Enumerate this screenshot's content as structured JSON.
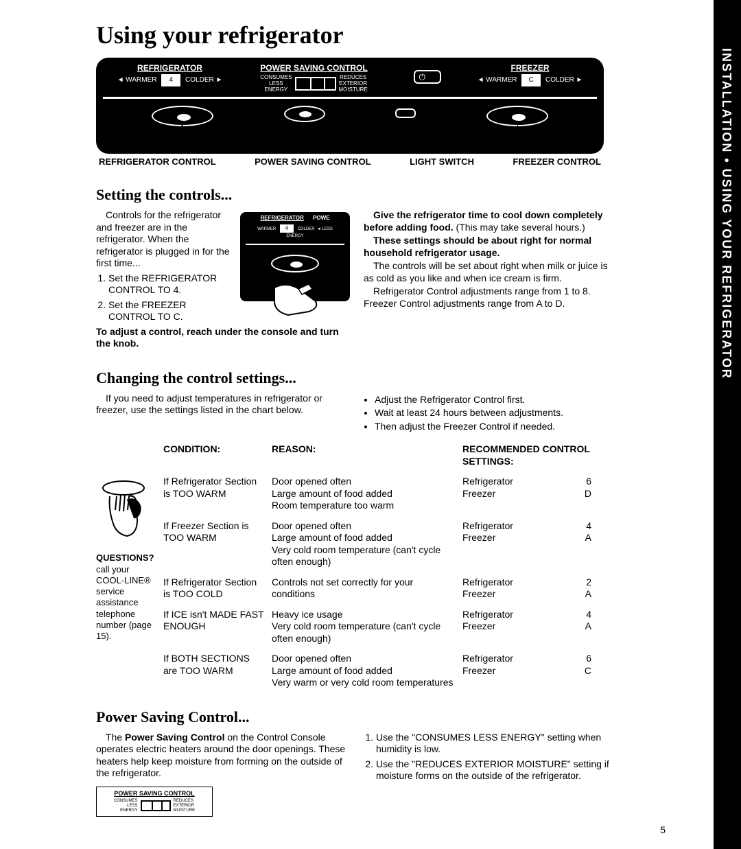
{
  "sideTab": "INSTALLATION • USING YOUR REFRIGERATOR",
  "title": "Using your refrigerator",
  "panel": {
    "refrigerator": "REFRIGERATOR",
    "warmer": "◄ WARMER",
    "colder": "COLDER ►",
    "dial4": "4",
    "psc": "POWER SAVING CONTROL",
    "consumesLess": "CONSUMES\nLESS\nENERGY",
    "reducesMoisture": "REDUCES\nEXTERIOR\nMOISTURE",
    "freezer": "FREEZER",
    "dialC": "C"
  },
  "callouts": {
    "refrigCtrl": "REFRIGERATOR CONTROL",
    "pscCtrl": "POWER SAVING CONTROL",
    "lightSwitch": "LIGHT SWITCH",
    "freezerCtrl": "FREEZER CONTROL"
  },
  "setting": {
    "heading": "Setting the controls...",
    "leftPara": "Controls for the refrigerator and freezer are in the refrigerator. When the refrigerator is plugged in for the first time...",
    "step1": "Set the REFRIGERATOR CONTROL TO 4.",
    "step2": "Set the FREEZER CONTROL TO C.",
    "adjust": "To adjust a control, reach under the console and turn the knob.",
    "rightPara1a": "Give the refrigerator time to cool down completely before adding food.",
    "rightPara1b": " (This may take several hours.)",
    "rightPara2": "These settings should be about right for normal household refrigerator usage.",
    "rightPara3": "The controls will be set about right when milk or juice is as cold as you like and when ice cream is firm.",
    "rightPara4": "Refrigerator Control adjustments range from 1 to 8. Freezer Control adjustments range from A to D."
  },
  "changing": {
    "heading": "Changing the control settings...",
    "leftPara": "If you need to adjust temperatures in refrigerator or freezer, use the settings listed in the chart below.",
    "bullet1": "Adjust the Refrigerator Control first.",
    "bullet2": "Wait at least 24 hours between adjustments.",
    "bullet3": "Then adjust the Freezer Control if needed."
  },
  "table": {
    "hCondition": "CONDITION:",
    "hReason": "REASON:",
    "hRecommended": "RECOMMENDED CONTROL SETTINGS:",
    "sidebarQ": "QUESTIONS?",
    "sidebarText": "call your COOL-LINE® service assistance telephone number (page 15).",
    "rows": [
      {
        "condition": "If Refrigerator Section is TOO WARM",
        "reason": "Door opened often\nLarge amount of food added\nRoom temperature too warm",
        "refrig": "Refrigerator",
        "refrigVal": "6",
        "freezer": "Freezer",
        "freezerVal": "D"
      },
      {
        "condition": "If Freezer Section is TOO WARM",
        "reason": "Door opened often\nLarge amount of food added\nVery cold room temperature (can't cycle often enough)",
        "refrig": "Refrigerator",
        "refrigVal": "4",
        "freezer": "Freezer",
        "freezerVal": "A"
      },
      {
        "condition": "If Refrigerator Section is TOO COLD",
        "reason": "Controls not set correctly for your conditions",
        "refrig": "Refrigerator",
        "refrigVal": "2",
        "freezer": "Freezer",
        "freezerVal": "A"
      },
      {
        "condition": "If ICE isn't MADE FAST ENOUGH",
        "reason": "Heavy ice usage\nVery cold room temperature (can't cycle often enough)",
        "refrig": "Refrigerator",
        "refrigVal": "4",
        "freezer": "Freezer",
        "freezerVal": "A"
      },
      {
        "condition": "If BOTH SECTIONS are TOO WARM",
        "reason": "Door opened often\nLarge amount of food added\nVery warm or very cold room temperatures",
        "refrig": "Refrigerator",
        "refrigVal": "6",
        "freezer": "Freezer",
        "freezerVal": "C"
      }
    ]
  },
  "psc": {
    "heading": "Power Saving Control...",
    "leftPara": "The Power Saving Control on the Control Console operates electric heaters around the door openings. These heaters help keep moisture from forming on the outside of the refrigerator.",
    "step1": "Use the \"CONSUMES LESS ENERGY\" setting when humidity is low.",
    "step2": "Use the \"REDUCES EXTERIOR MOISTURE\" setting if moisture forms on the outside of the refrigerator.",
    "smallLabel": "POWER SAVING CONTROL"
  },
  "pageNumber": "5"
}
